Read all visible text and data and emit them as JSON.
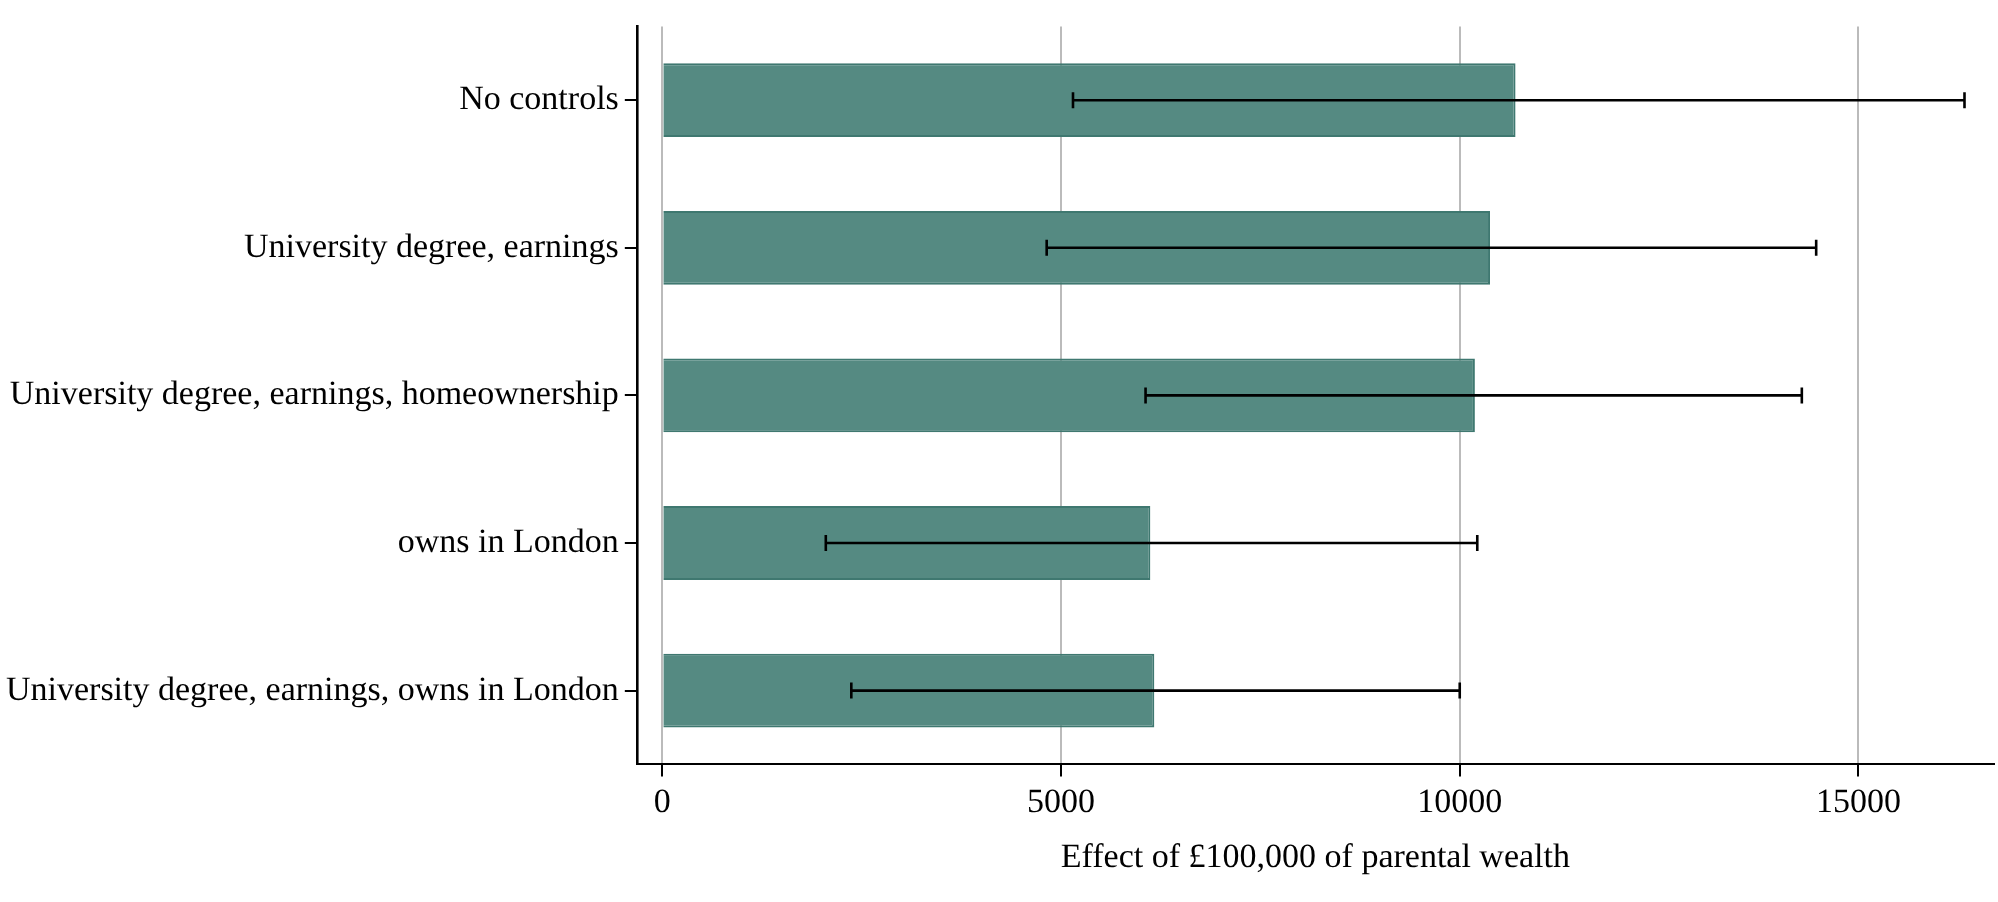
{
  "chart_data": {
    "type": "bar",
    "orientation": "horizontal",
    "xlabel": "Effect of £100,000 of parental wealth",
    "categories": [
      "No controls",
      "University degree, earnings",
      "University degree, earnings, homeownership",
      "owns in London",
      "University degree, earnings, owns in London"
    ],
    "values": [
      10700,
      10380,
      10190,
      6120,
      6170
    ],
    "errors": [
      [
        5150,
        16330
      ],
      [
        4820,
        14470
      ],
      [
        6060,
        14290
      ],
      [
        2050,
        10220
      ],
      [
        2370,
        10000
      ]
    ],
    "color": "#558a82",
    "xlim": [
      -320,
      16700
    ],
    "xticks": [
      0,
      5000,
      10000,
      15000
    ],
    "grid": "x"
  }
}
